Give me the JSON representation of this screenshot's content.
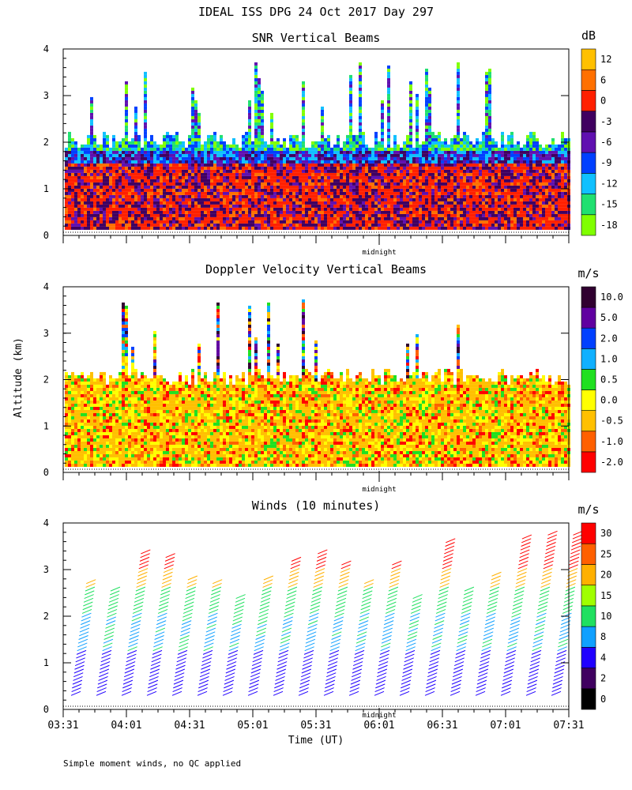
{
  "figure": {
    "title": "IDEAL ISS DPG  24 Oct 2017 Day 297",
    "ylabel": "Altitude (km)",
    "xlabel": "Time (UT)",
    "footnote": "Simple moment winds, no QC applied",
    "midnight_label": "midnight"
  },
  "chart_data": [
    {
      "type": "heatmap",
      "title": "SNR Vertical Beams",
      "unit": "dB",
      "ylim": [
        0,
        4
      ],
      "yticks": [
        "0",
        "1",
        "2",
        "3",
        "4"
      ],
      "colorbar": {
        "colors": [
          "#80ff00",
          "#20e070",
          "#10c0ff",
          "#0040ff",
          "#6010b0",
          "#400060",
          "#ff2000",
          "#ff7000",
          "#ffc000"
        ],
        "labels": [
          "-18",
          "-15",
          "-12",
          "-9",
          "-6",
          "-3",
          "0",
          "6",
          "12"
        ]
      }
    },
    {
      "type": "heatmap",
      "title": "Doppler Velocity Vertical Beams",
      "unit": "m/s",
      "ylim": [
        0,
        4
      ],
      "yticks": [
        "0",
        "1",
        "2",
        "3",
        "4"
      ],
      "colorbar": {
        "colors": [
          "#ff0000",
          "#ff6000",
          "#ffc000",
          "#ffff00",
          "#20e020",
          "#10b0ff",
          "#0040ff",
          "#6000a0",
          "#300030"
        ],
        "labels": [
          "-2.0",
          "-1.0",
          "-0.5",
          "0.0",
          "0.5",
          "1.0",
          "2.0",
          "5.0",
          "10.0"
        ]
      }
    },
    {
      "type": "scatter",
      "title": "Winds (10 minutes)",
      "unit": "m/s",
      "ylim": [
        0,
        4
      ],
      "yticks": [
        "0",
        "1",
        "2",
        "3",
        "4"
      ],
      "x": [
        "03:31",
        "04:01",
        "04:31",
        "05:01",
        "05:31",
        "06:01",
        "06:31",
        "07:01",
        "07:31"
      ],
      "colorbar": {
        "colors": [
          "#000000",
          "#400060",
          "#2000ff",
          "#10a0ff",
          "#20e060",
          "#a0ff00",
          "#ffb000",
          "#ff6000",
          "#ff0000"
        ],
        "labels": [
          "0",
          "2",
          "4",
          "8",
          "10",
          "15",
          "20",
          "25",
          "30"
        ]
      }
    }
  ]
}
